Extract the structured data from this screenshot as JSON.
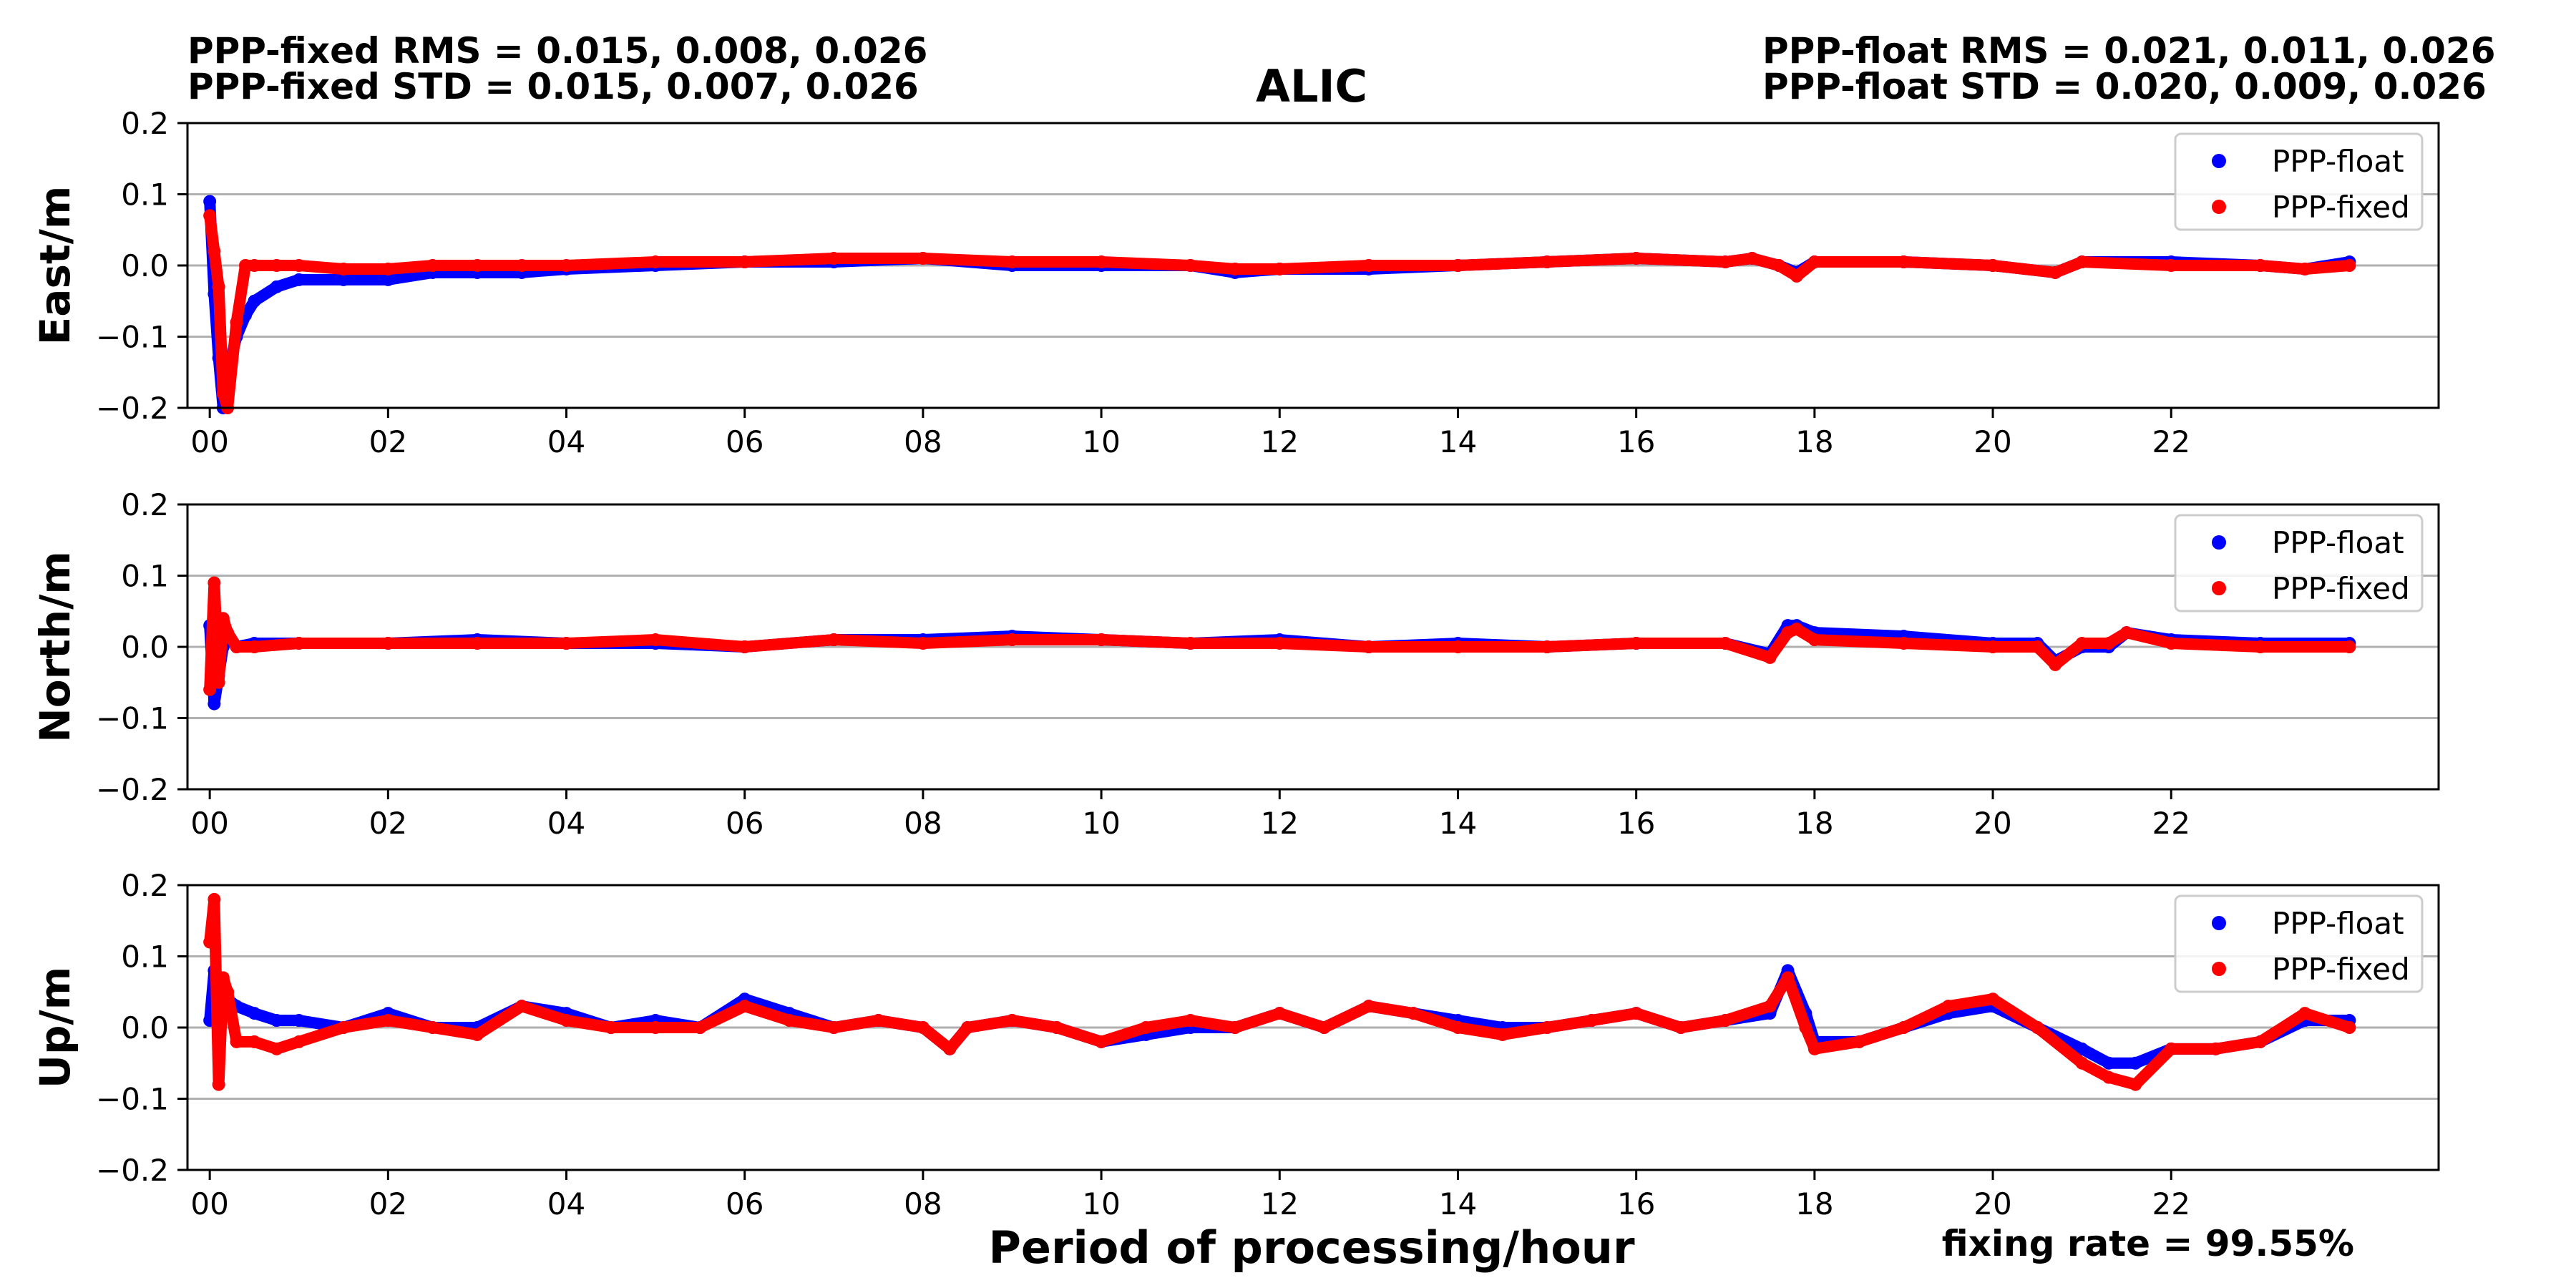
{
  "header": {
    "fixed_rms": "PPP-fixed RMS =  0.015, 0.008, 0.026",
    "fixed_std": "PPP-fixed STD =  0.015, 0.007, 0.026",
    "float_rms": "PPP-float RMS =  0.021, 0.011, 0.026",
    "float_std": "PPP-float STD =  0.020, 0.009, 0.026"
  },
  "fixing_rate": "fixing rate =  99.55%",
  "colors": {
    "float": "#0000ff",
    "fixed": "#ff0000"
  },
  "chart_data": [
    {
      "type": "scatter",
      "title": "ALIC",
      "xlabel": "",
      "ylabel": "East/m",
      "xlim": [
        -0.25,
        25.0
      ],
      "ylim": [
        -0.2,
        0.2
      ],
      "x_ticks": [
        "00",
        "02",
        "04",
        "06",
        "08",
        "10",
        "12",
        "14",
        "16",
        "18",
        "20",
        "22"
      ],
      "y_ticks": [
        "0.2",
        "0.1",
        "0.0",
        "−0.1",
        "−0.2"
      ],
      "grid": "horizontal",
      "legend_position": "top-right",
      "series": [
        {
          "name": "PPP-float",
          "color": "#0000ff",
          "x": [
            0.0,
            0.05,
            0.1,
            0.15,
            0.2,
            0.3,
            0.4,
            0.5,
            0.75,
            1.0,
            1.5,
            2.0,
            2.5,
            3.0,
            3.5,
            4.0,
            5.0,
            6.0,
            7.0,
            8.0,
            9.0,
            10.0,
            11.0,
            11.5,
            12.0,
            13.0,
            14.0,
            15.0,
            16.0,
            17.0,
            17.3,
            17.6,
            17.8,
            18.0,
            19.0,
            20.0,
            20.7,
            21.0,
            22.0,
            23.0,
            23.5,
            24.0
          ],
          "y": [
            0.09,
            -0.04,
            -0.13,
            -0.2,
            -0.15,
            -0.1,
            -0.07,
            -0.05,
            -0.03,
            -0.02,
            -0.02,
            -0.02,
            -0.01,
            -0.01,
            -0.01,
            -0.005,
            0.0,
            0.005,
            0.005,
            0.01,
            0.0,
            0.0,
            0.0,
            -0.01,
            -0.005,
            -0.005,
            0.0,
            0.005,
            0.01,
            0.005,
            0.01,
            0.0,
            -0.01,
            0.005,
            0.005,
            0.0,
            -0.01,
            0.005,
            0.005,
            0.0,
            -0.005,
            0.005
          ]
        },
        {
          "name": "PPP-fixed",
          "color": "#ff0000",
          "x": [
            0.0,
            0.05,
            0.1,
            0.15,
            0.2,
            0.3,
            0.4,
            0.5,
            0.75,
            1.0,
            1.5,
            2.0,
            2.5,
            3.0,
            3.5,
            4.0,
            5.0,
            6.0,
            7.0,
            8.0,
            9.0,
            10.0,
            11.0,
            11.5,
            12.0,
            13.0,
            14.0,
            15.0,
            16.0,
            17.0,
            17.3,
            17.6,
            17.8,
            18.0,
            19.0,
            20.0,
            20.7,
            21.0,
            22.0,
            23.0,
            23.5,
            24.0
          ],
          "y": [
            0.07,
            0.02,
            -0.03,
            -0.18,
            -0.2,
            -0.08,
            0.0,
            0.0,
            0.0,
            0.0,
            -0.005,
            -0.005,
            0.0,
            0.0,
            0.0,
            0.0,
            0.005,
            0.005,
            0.01,
            0.01,
            0.005,
            0.005,
            0.0,
            -0.005,
            -0.005,
            0.0,
            0.0,
            0.005,
            0.01,
            0.005,
            0.01,
            0.0,
            -0.015,
            0.005,
            0.005,
            0.0,
            -0.01,
            0.005,
            0.0,
            0.0,
            -0.005,
            0.0
          ]
        }
      ]
    },
    {
      "type": "scatter",
      "ylabel": "North/m",
      "xlim": [
        -0.25,
        25.0
      ],
      "ylim": [
        -0.2,
        0.2
      ],
      "x_ticks": [
        "00",
        "02",
        "04",
        "06",
        "08",
        "10",
        "12",
        "14",
        "16",
        "18",
        "20",
        "22"
      ],
      "y_ticks": [
        "0.2",
        "0.1",
        "0.0",
        "−0.1",
        "−0.2"
      ],
      "grid": "horizontal",
      "legend_position": "top-right",
      "series": [
        {
          "name": "PPP-float",
          "color": "#0000ff",
          "x": [
            0.0,
            0.05,
            0.1,
            0.15,
            0.2,
            0.3,
            0.5,
            1.0,
            2.0,
            3.0,
            4.0,
            5.0,
            6.0,
            7.0,
            8.0,
            9.0,
            10.0,
            11.0,
            12.0,
            13.0,
            14.0,
            15.0,
            16.0,
            17.0,
            17.5,
            17.7,
            17.8,
            18.0,
            19.0,
            20.0,
            20.5,
            20.7,
            21.0,
            21.3,
            21.5,
            22.0,
            23.0,
            24.0
          ],
          "y": [
            0.03,
            -0.08,
            -0.04,
            0.0,
            0.02,
            0.0,
            0.005,
            0.005,
            0.005,
            0.01,
            0.005,
            0.005,
            0.0,
            0.01,
            0.01,
            0.015,
            0.01,
            0.005,
            0.01,
            0.0,
            0.005,
            0.0,
            0.005,
            0.005,
            -0.01,
            0.03,
            0.03,
            0.02,
            0.015,
            0.005,
            0.005,
            -0.02,
            0.0,
            0.0,
            0.02,
            0.01,
            0.005,
            0.005
          ]
        },
        {
          "name": "PPP-fixed",
          "color": "#ff0000",
          "x": [
            0.0,
            0.05,
            0.1,
            0.15,
            0.2,
            0.3,
            0.5,
            1.0,
            2.0,
            3.0,
            4.0,
            5.0,
            6.0,
            7.0,
            8.0,
            9.0,
            10.0,
            11.0,
            12.0,
            13.0,
            14.0,
            15.0,
            16.0,
            17.0,
            17.5,
            17.7,
            17.8,
            18.0,
            19.0,
            20.0,
            20.5,
            20.7,
            21.0,
            21.3,
            21.5,
            22.0,
            23.0,
            24.0
          ],
          "y": [
            -0.06,
            0.09,
            -0.05,
            0.04,
            0.02,
            0.0,
            0.0,
            0.005,
            0.005,
            0.005,
            0.005,
            0.01,
            0.0,
            0.01,
            0.005,
            0.01,
            0.01,
            0.005,
            0.005,
            0.0,
            0.0,
            0.0,
            0.005,
            0.005,
            -0.015,
            0.02,
            0.025,
            0.01,
            0.005,
            0.0,
            0.0,
            -0.025,
            0.005,
            0.005,
            0.02,
            0.005,
            0.0,
            0.0
          ]
        }
      ]
    },
    {
      "type": "scatter",
      "ylabel": "Up/m",
      "xlabel": "Period of processing/hour",
      "xlim": [
        -0.25,
        25.0
      ],
      "ylim": [
        -0.2,
        0.2
      ],
      "x_ticks": [
        "00",
        "02",
        "04",
        "06",
        "08",
        "10",
        "12",
        "14",
        "16",
        "18",
        "20",
        "22"
      ],
      "y_ticks": [
        "0.2",
        "0.1",
        "0.0",
        "−0.1",
        "−0.2"
      ],
      "grid": "horizontal",
      "legend_position": "top-right",
      "series": [
        {
          "name": "PPP-float",
          "color": "#0000ff",
          "x": [
            0.0,
            0.05,
            0.1,
            0.2,
            0.3,
            0.5,
            0.75,
            1.0,
            1.5,
            2.0,
            2.5,
            3.0,
            3.5,
            4.0,
            4.5,
            5.0,
            5.5,
            6.0,
            6.5,
            7.0,
            7.5,
            8.0,
            8.3,
            8.5,
            9.0,
            9.5,
            10.0,
            10.5,
            11.0,
            11.5,
            12.0,
            12.5,
            13.0,
            13.5,
            14.0,
            14.5,
            15.0,
            15.5,
            16.0,
            16.5,
            17.0,
            17.5,
            17.7,
            17.9,
            18.0,
            18.5,
            19.0,
            19.5,
            20.0,
            20.5,
            21.0,
            21.3,
            21.6,
            22.0,
            22.5,
            23.0,
            23.5,
            24.0
          ],
          "y": [
            0.01,
            0.08,
            0.06,
            0.04,
            0.03,
            0.02,
            0.01,
            0.01,
            0.0,
            0.02,
            0.0,
            0.0,
            0.03,
            0.02,
            0.0,
            0.01,
            0.0,
            0.04,
            0.02,
            0.0,
            0.01,
            0.0,
            -0.03,
            0.0,
            0.01,
            0.0,
            -0.02,
            -0.01,
            0.0,
            0.0,
            0.02,
            0.0,
            0.03,
            0.02,
            0.01,
            0.0,
            0.0,
            0.01,
            0.02,
            0.0,
            0.01,
            0.02,
            0.08,
            0.02,
            -0.02,
            -0.02,
            0.0,
            0.02,
            0.03,
            0.0,
            -0.03,
            -0.05,
            -0.05,
            -0.03,
            -0.03,
            -0.02,
            0.01,
            0.01
          ]
        },
        {
          "name": "PPP-fixed",
          "color": "#ff0000",
          "x": [
            0.0,
            0.05,
            0.1,
            0.15,
            0.2,
            0.3,
            0.5,
            0.75,
            1.0,
            1.5,
            2.0,
            2.5,
            3.0,
            3.5,
            4.0,
            4.5,
            5.0,
            5.5,
            6.0,
            6.5,
            7.0,
            7.5,
            8.0,
            8.3,
            8.5,
            9.0,
            9.5,
            10.0,
            10.5,
            11.0,
            11.5,
            12.0,
            12.5,
            13.0,
            13.5,
            14.0,
            14.5,
            15.0,
            15.5,
            16.0,
            16.5,
            17.0,
            17.5,
            17.7,
            17.9,
            18.0,
            18.5,
            19.0,
            19.5,
            20.0,
            20.5,
            21.0,
            21.3,
            21.6,
            22.0,
            22.5,
            23.0,
            23.5,
            24.0
          ],
          "y": [
            0.12,
            0.18,
            -0.08,
            0.07,
            0.05,
            -0.02,
            -0.02,
            -0.03,
            -0.02,
            0.0,
            0.01,
            0.0,
            -0.01,
            0.03,
            0.01,
            0.0,
            0.0,
            0.0,
            0.03,
            0.01,
            0.0,
            0.01,
            0.0,
            -0.03,
            0.0,
            0.01,
            0.0,
            -0.02,
            0.0,
            0.01,
            0.0,
            0.02,
            0.0,
            0.03,
            0.02,
            0.0,
            -0.01,
            0.0,
            0.01,
            0.02,
            0.0,
            0.01,
            0.03,
            0.07,
            0.0,
            -0.03,
            -0.02,
            0.0,
            0.03,
            0.04,
            0.0,
            -0.05,
            -0.07,
            -0.08,
            -0.03,
            -0.03,
            -0.02,
            0.02,
            0.0
          ]
        }
      ]
    }
  ]
}
